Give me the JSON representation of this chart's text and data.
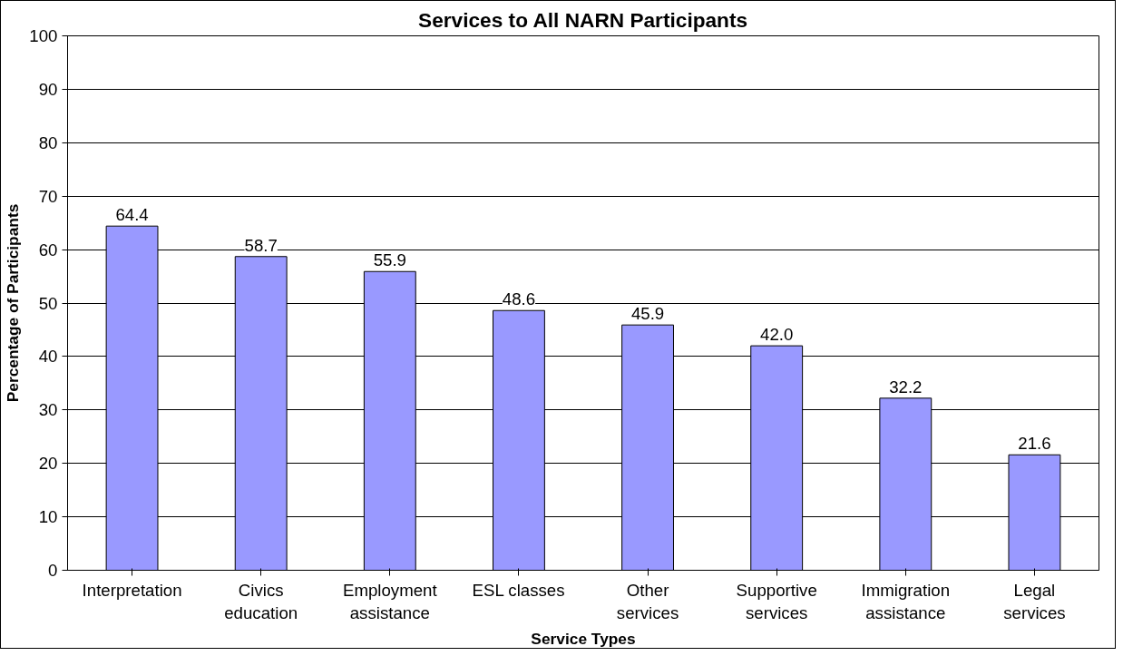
{
  "chart_data": {
    "type": "bar",
    "title": "Services to All NARN Participants",
    "xlabel": "Service Types",
    "ylabel": "Percentage of Participants",
    "categories": [
      "Interpretation",
      "Civics education",
      "Employment assistance",
      "ESL classes",
      "Other services",
      "Supportive services",
      "Immigration assistance",
      "Legal services"
    ],
    "values": [
      64.4,
      58.7,
      55.9,
      48.6,
      45.9,
      42.0,
      32.2,
      21.6
    ],
    "value_labels": [
      "64.4",
      "58.7",
      "55.9",
      "48.6",
      "45.9",
      "42.0",
      "32.2",
      "21.6"
    ],
    "color": "#9999ff",
    "ylim": [
      0,
      100
    ],
    "yticks": [
      0,
      10,
      20,
      30,
      40,
      50,
      60,
      70,
      80,
      90,
      100
    ],
    "grid": "y"
  }
}
